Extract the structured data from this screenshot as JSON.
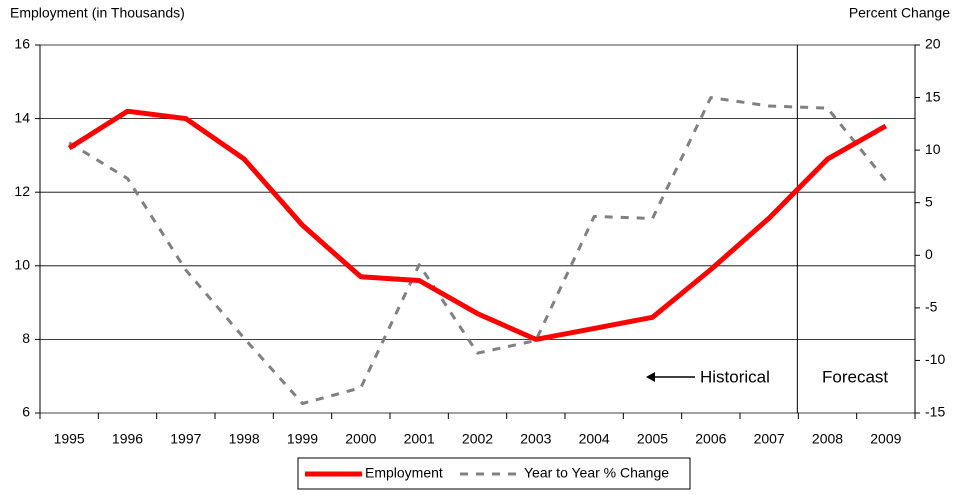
{
  "chart_data": {
    "type": "line",
    "y_label": "Employment (in Thousands)",
    "y2_label": "Percent Change",
    "categories": [
      "1995",
      "1996",
      "1997",
      "1998",
      "1999",
      "2000",
      "2001",
      "2002",
      "2003",
      "2004",
      "2005",
      "2006",
      "2007",
      "2008",
      "2009"
    ],
    "series": [
      {
        "name": "Employment",
        "color": "#ff0000",
        "values": [
          13.2,
          14.2,
          14.0,
          12.9,
          11.1,
          9.7,
          9.6,
          8.7,
          8.0,
          8.3,
          8.6,
          9.9,
          11.3,
          12.9,
          13.8
        ]
      },
      {
        "name": "Year to Year % Change",
        "color": "#808080",
        "axis": "y2",
        "values": [
          10.7,
          7.3,
          -1.4,
          -7.9,
          -14.1,
          -12.6,
          -0.9,
          -9.3,
          -8.1,
          3.7,
          3.5,
          15.0,
          14.2,
          14.0,
          7.1
        ]
      }
    ],
    "ylim": [
      6,
      16
    ],
    "yticks": [
      6,
      8,
      10,
      12,
      14,
      16
    ],
    "y2lim": [
      -15,
      20
    ],
    "y2ticks": [
      -15,
      -10,
      -5,
      0,
      5,
      10,
      15,
      20
    ],
    "grid": true,
    "annotations": [
      "Historical",
      "Forecast"
    ],
    "legend": "bottom"
  }
}
